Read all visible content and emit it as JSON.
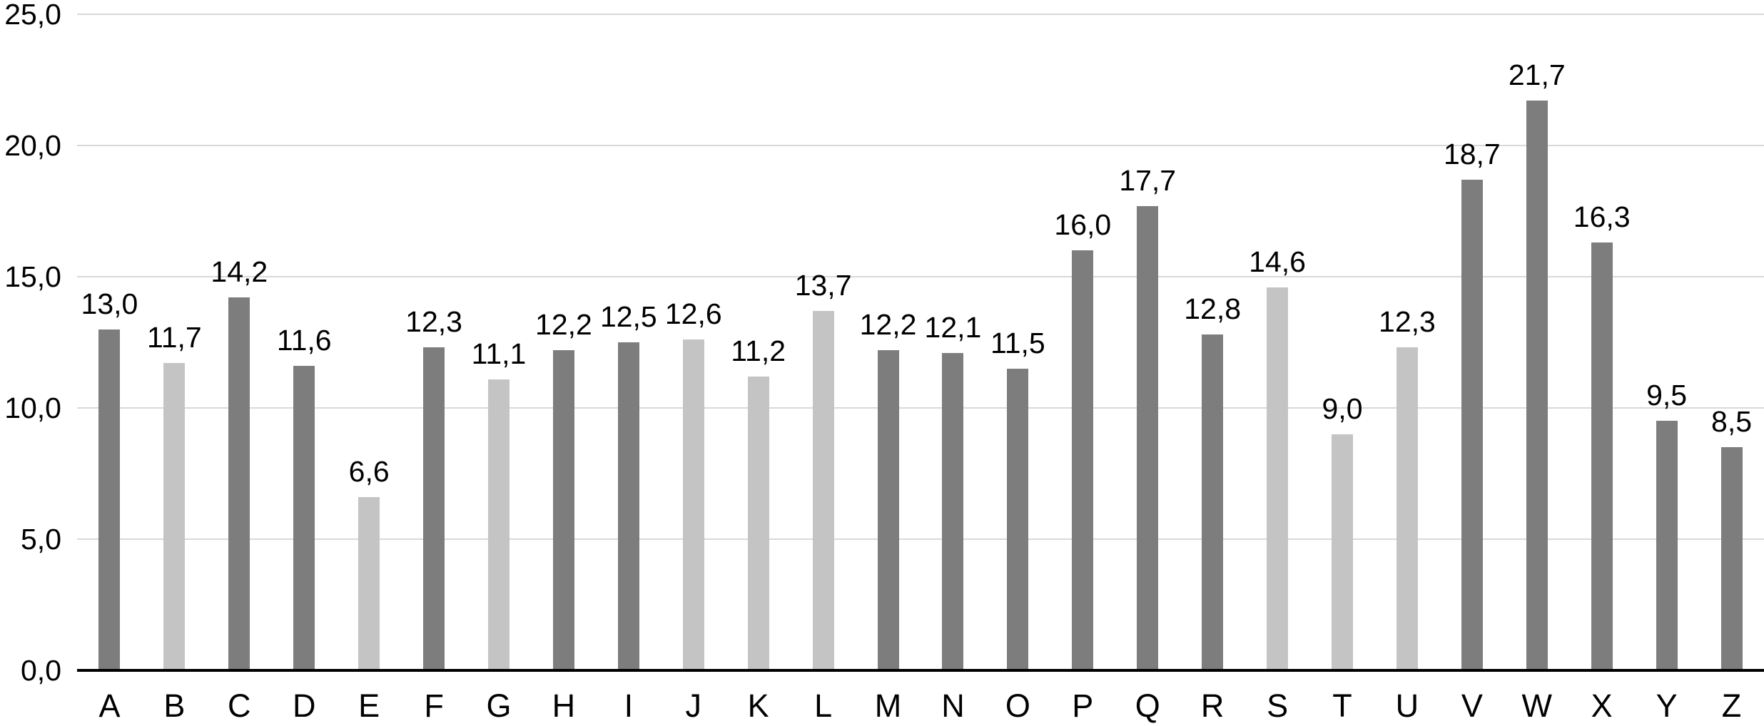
{
  "chart_data": {
    "type": "bar",
    "title": "",
    "xlabel": "",
    "ylabel": "",
    "categories": [
      "A",
      "B",
      "C",
      "D",
      "E",
      "F",
      "G",
      "H",
      "I",
      "J",
      "K",
      "L",
      "M",
      "N",
      "O",
      "P",
      "Q",
      "R",
      "S",
      "T",
      "U",
      "V",
      "W",
      "X",
      "Y",
      "Z"
    ],
    "values": [
      13.0,
      11.7,
      14.2,
      11.6,
      6.6,
      12.3,
      11.1,
      12.2,
      12.5,
      12.6,
      11.2,
      13.7,
      12.2,
      12.1,
      11.5,
      16.0,
      17.7,
      12.8,
      14.6,
      9.0,
      12.3,
      18.7,
      21.7,
      16.3,
      9.5,
      8.5
    ],
    "value_labels": [
      "13,0",
      "11,7",
      "14,2",
      "11,6",
      "6,6",
      "12,3",
      "11,1",
      "12,2",
      "12,5",
      "12,6",
      "11,2",
      "13,7",
      "12,2",
      "12,1",
      "11,5",
      "16,0",
      "17,7",
      "12,8",
      "14,6",
      "9,0",
      "12,3",
      "18,7",
      "21,7",
      "16,3",
      "9,5",
      "8,5"
    ],
    "bar_styles": [
      "dark",
      "light",
      "dark",
      "dark",
      "light",
      "dark",
      "light",
      "dark",
      "dark",
      "light",
      "light",
      "light",
      "dark",
      "dark",
      "dark",
      "dark",
      "dark",
      "dark",
      "light",
      "light",
      "light",
      "dark",
      "dark",
      "dark",
      "dark",
      "dark"
    ],
    "ylim": [
      0,
      25
    ],
    "ytick_interval": 5,
    "ytick_labels": [
      "0,0",
      "5,0",
      "10,0",
      "15,0",
      "20,0",
      "25,0"
    ],
    "grid": true,
    "legend_position": "none",
    "colors": {
      "dark_bar": "#7d7d7d",
      "light_bar": "#c4c4c4",
      "gridline": "#d9d9d9",
      "axis_line": "#000000",
      "text": "#000000",
      "background": "#ffffff"
    }
  }
}
